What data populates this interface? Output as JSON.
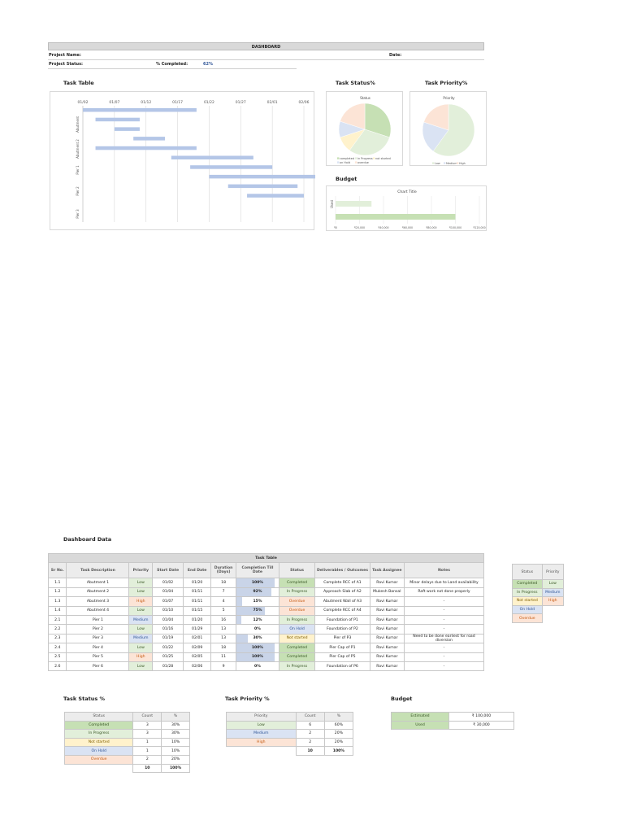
{
  "header": {
    "title": "DASHBOARD",
    "project_name_label": "Project Name:",
    "date_label": "Date:",
    "project_status_label": "Project Status:",
    "completed_label": "% Completed:",
    "completed_value": "62%"
  },
  "sections": {
    "task_table": "Task Table",
    "task_status": "Task Status%",
    "task_priority": "Task Priority%",
    "budget": "Budget",
    "dashboard_data": "Dashboard Data",
    "task_status_pct": "Task Status %",
    "task_priority_pct": "Task Priority %",
    "budget_lower": "Budget"
  },
  "chart_data": [
    {
      "type": "bar",
      "subtype": "gantt",
      "x_ticks": [
        "01/02",
        "01/07",
        "01/12",
        "01/17",
        "01/22",
        "01/27",
        "02/01",
        "02/06"
      ],
      "y_groups": [
        "Abutment",
        "Abutment 2",
        "Pier 1",
        "Pier 2",
        "Pier 3"
      ],
      "bars": [
        {
          "start": "01/02",
          "end": "01/20"
        },
        {
          "start": "01/04",
          "end": "01/11"
        },
        {
          "start": "01/07",
          "end": "01/11"
        },
        {
          "start": "01/10",
          "end": "01/15"
        },
        {
          "start": "01/04",
          "end": "01/20"
        },
        {
          "start": "01/16",
          "end": "01/29"
        },
        {
          "start": "01/19",
          "end": "02/01"
        },
        {
          "start": "01/22",
          "end": "02/09"
        },
        {
          "start": "01/25",
          "end": "02/05"
        },
        {
          "start": "01/28",
          "end": "02/06"
        }
      ]
    },
    {
      "type": "pie",
      "title": "Status",
      "labels": [
        "Completed",
        "In Progress",
        "Not started",
        "On Hold",
        "Overdue"
      ],
      "values": [
        3,
        3,
        1,
        1,
        2
      ],
      "colors": [
        "#c6e0b4",
        "#e2efda",
        "#fff2cc",
        "#dae3f3",
        "#fce4d6"
      ],
      "legend_text": [
        "completed",
        "in Progress",
        "not started",
        "on Hold",
        "overdue"
      ]
    },
    {
      "type": "pie",
      "title": "Priority",
      "labels": [
        "Low",
        "Medium",
        "High"
      ],
      "values": [
        6,
        2,
        2
      ],
      "colors": [
        "#e2efda",
        "#dae3f3",
        "#fce4d6"
      ],
      "legend_text": [
        "Low",
        "Medium",
        "High"
      ]
    },
    {
      "type": "bar",
      "orientation": "horizontal",
      "title": "Chart Title",
      "categories": [
        "Used",
        "Estimated"
      ],
      "values": [
        30000,
        100000
      ],
      "x_ticks": [
        "₹0",
        "₹20,000",
        "₹40,000",
        "₹60,000",
        "₹80,000",
        "₹100,000",
        "₹120,000"
      ],
      "xlim": [
        0,
        120000
      ],
      "colors": [
        "#e2efda",
        "#c6e0b4"
      ]
    }
  ],
  "task_table": {
    "title": "Task Table",
    "columns": [
      "Sr No.",
      "Task Description",
      "Priority",
      "Start Date",
      "End Date",
      "Duration (Days)",
      "Completion Till Date",
      "Status",
      "Deliverables / Outcomes",
      "Task Assignee",
      "Notes"
    ],
    "rows": [
      {
        "sr": "1.1",
        "task": "Abutment 1",
        "priority": "Low",
        "pclass": "plow",
        "start": "01/02",
        "end": "01/20",
        "dur": "18",
        "comp": "100%",
        "pct": 100,
        "status": "Completed",
        "sclass": "completed",
        "deliv": "Complete RCC of A1",
        "assignee": "Ravi Kumar",
        "notes": "Minor delays due to Land availability"
      },
      {
        "sr": "1.2",
        "task": "Abutment 2",
        "priority": "Low",
        "pclass": "plow",
        "start": "01/04",
        "end": "01/11",
        "dur": "7",
        "comp": "92%",
        "pct": 92,
        "status": "In Progress",
        "sclass": "inprogress",
        "deliv": "Approach Slab of A2",
        "assignee": "Mukesh Bansal",
        "notes": "Raft work not done properly"
      },
      {
        "sr": "1.3",
        "task": "Abutment 3",
        "priority": "High",
        "pclass": "phigh",
        "start": "01/07",
        "end": "01/11",
        "dur": "4",
        "comp": "15%",
        "pct": 15,
        "status": "Overdue",
        "sclass": "overdue",
        "deliv": "Abutment Wall of A3",
        "assignee": "Ravi Kumar",
        "notes": "-"
      },
      {
        "sr": "1.4",
        "task": "Abutment 4",
        "priority": "Low",
        "pclass": "plow",
        "start": "01/10",
        "end": "01/15",
        "dur": "5",
        "comp": "75%",
        "pct": 75,
        "status": "Overdue",
        "sclass": "overdue",
        "deliv": "Complete RCC of A4",
        "assignee": "Ravi Kumar",
        "notes": "-"
      },
      {
        "sr": "2.1",
        "task": "Pier 1",
        "priority": "Medium",
        "pclass": "pmed",
        "start": "01/04",
        "end": "01/20",
        "dur": "16",
        "comp": "12%",
        "pct": 12,
        "status": "In Progress",
        "sclass": "inprogress",
        "deliv": "Foundation  of P1",
        "assignee": "Ravi Kumar",
        "notes": "-"
      },
      {
        "sr": "2.2",
        "task": "Pier 2",
        "priority": "Low",
        "pclass": "plow",
        "start": "01/16",
        "end": "01/29",
        "dur": "13",
        "comp": "0%",
        "pct": 0,
        "status": "On Hold",
        "sclass": "onhold",
        "deliv": "Foundation  of P2",
        "assignee": "Ravi Kumar",
        "notes": "-"
      },
      {
        "sr": "2.3",
        "task": "Pier 3",
        "priority": "Medium",
        "pclass": "pmed",
        "start": "01/19",
        "end": "02/01",
        "dur": "13",
        "comp": "30%",
        "pct": 30,
        "status": "Not started",
        "sclass": "notstarted",
        "deliv": "Pier of P3",
        "assignee": "Ravi Kumar",
        "notes": "Need to be done earliest for road diversion"
      },
      {
        "sr": "2.4",
        "task": "Pier 4",
        "priority": "Low",
        "pclass": "plow",
        "start": "01/22",
        "end": "02/09",
        "dur": "18",
        "comp": "100%",
        "pct": 100,
        "status": "Completed",
        "sclass": "completed",
        "deliv": "Pier Cap of P1",
        "assignee": "Ravi Kumar",
        "notes": "-"
      },
      {
        "sr": "2.5",
        "task": "Pier 5",
        "priority": "High",
        "pclass": "phigh",
        "start": "01/25",
        "end": "02/05",
        "dur": "11",
        "comp": "100%",
        "pct": 100,
        "status": "Completed",
        "sclass": "completed",
        "deliv": "Pier Cap of P5",
        "assignee": "Ravi Kumar",
        "notes": "-"
      },
      {
        "sr": "2.6",
        "task": "Pier 6",
        "priority": "Low",
        "pclass": "plow",
        "start": "01/28",
        "end": "02/06",
        "dur": "9",
        "comp": "0%",
        "pct": 0,
        "status": "In Progress",
        "sclass": "inprogress",
        "deliv": "Foundation of P6",
        "assignee": "Ravi Kumar",
        "notes": "-"
      }
    ]
  },
  "lookup": {
    "status_header": "Status",
    "priority_header": "Priority",
    "statuses": [
      {
        "label": "Completed",
        "cls": "completed"
      },
      {
        "label": "In Progress",
        "cls": "inprogress"
      },
      {
        "label": "Not started",
        "cls": "notstarted"
      },
      {
        "label": "On Hold",
        "cls": "onhold"
      },
      {
        "label": "Overdue",
        "cls": "overdue"
      }
    ],
    "priorities": [
      {
        "label": "Low",
        "cls": "plow"
      },
      {
        "label": "Medium",
        "cls": "pmed"
      },
      {
        "label": "High",
        "cls": "phigh"
      }
    ]
  },
  "status_summary": {
    "headers": [
      "Status",
      "Count",
      "%"
    ],
    "rows": [
      {
        "label": "Completed",
        "cls": "completed",
        "count": "3",
        "pct": "30%"
      },
      {
        "label": "In Progress",
        "cls": "inprogress",
        "count": "3",
        "pct": "30%"
      },
      {
        "label": "Not started",
        "cls": "notstarted",
        "count": "1",
        "pct": "10%"
      },
      {
        "label": "On Hold",
        "cls": "onhold",
        "count": "1",
        "pct": "10%"
      },
      {
        "label": "Overdue",
        "cls": "overdue",
        "count": "2",
        "pct": "20%"
      }
    ],
    "total_count": "10",
    "total_pct": "100%"
  },
  "priority_summary": {
    "headers": [
      "Priority",
      "Count",
      "%"
    ],
    "rows": [
      {
        "label": "Low",
        "cls": "plow",
        "count": "6",
        "pct": "60%"
      },
      {
        "label": "Medium",
        "cls": "pmed",
        "count": "2",
        "pct": "20%"
      },
      {
        "label": "High",
        "cls": "phigh",
        "count": "2",
        "pct": "20%"
      }
    ],
    "total_count": "10",
    "total_pct": "100%"
  },
  "budget_summary": {
    "rows": [
      {
        "label": "Estimated",
        "value": "₹ 100,000"
      },
      {
        "label": "Used",
        "value": "₹ 30,000"
      }
    ]
  }
}
